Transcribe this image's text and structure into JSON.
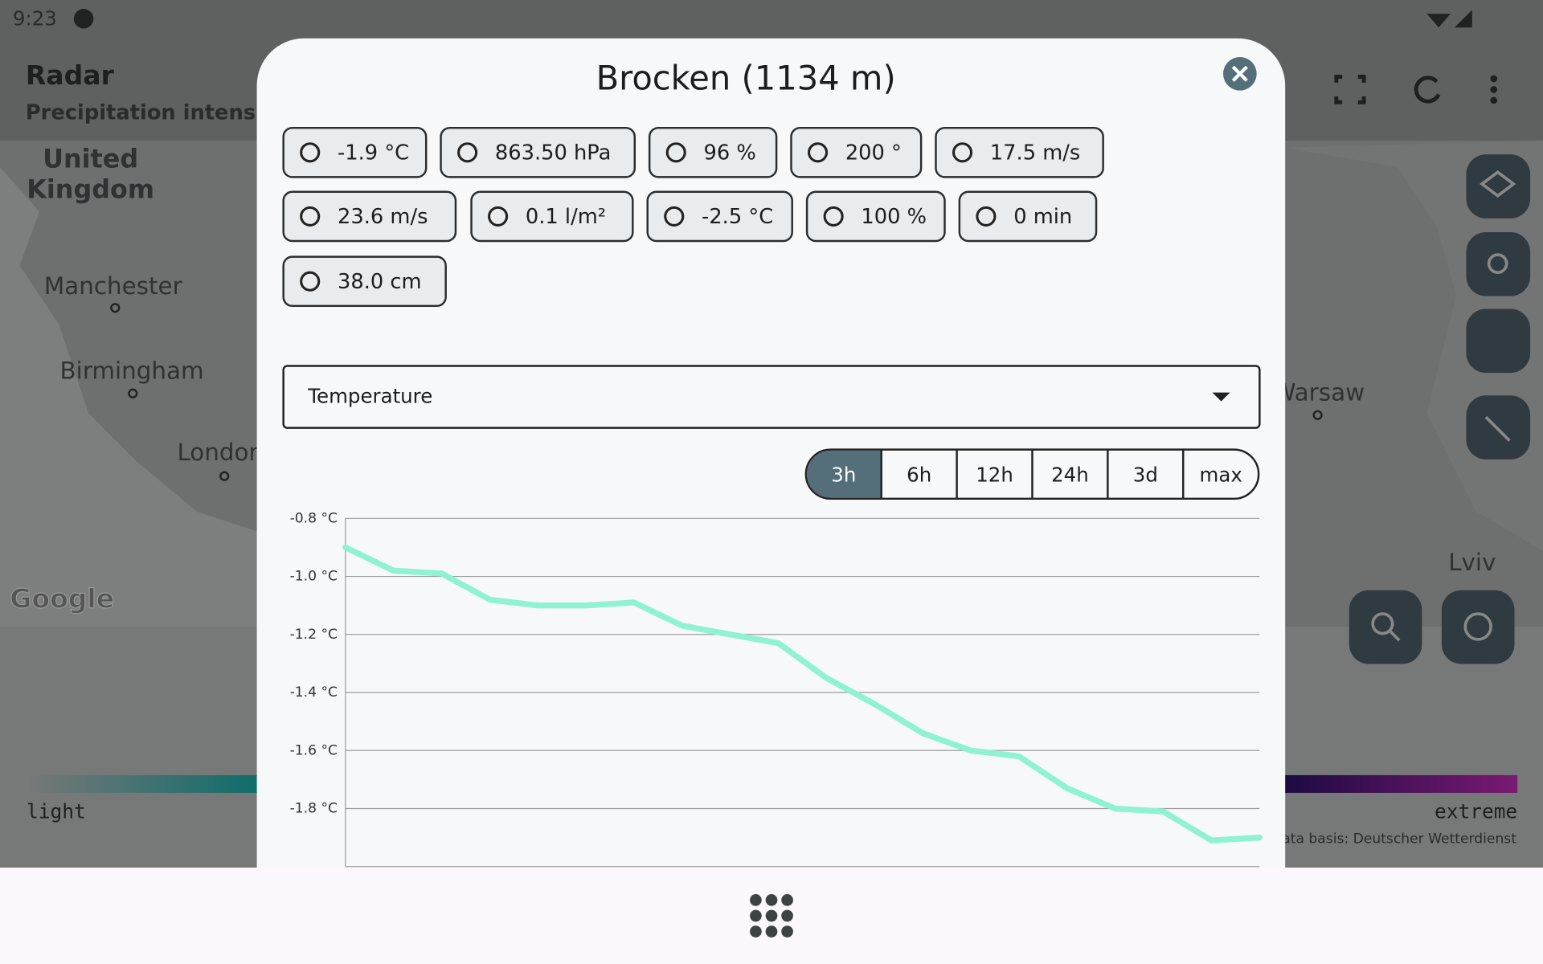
{
  "status_bar": {
    "time": "9:23"
  },
  "app_bar": {
    "title": "Radar",
    "subtitle": "Precipitation intensity"
  },
  "map": {
    "labels": [
      "United",
      "Kingdom",
      "Manchester",
      "Birmingham",
      "London",
      "Warsaw",
      "Lviv"
    ],
    "logo": "Google"
  },
  "legend": {
    "low": "light",
    "high": "extreme",
    "source": "Data basis: Deutscher Wetterdienst"
  },
  "dialog": {
    "title": "Brocken (1134 m)",
    "chips": [
      "-1.9 °C",
      "863.50 hPa",
      "96 %",
      "200 °",
      "17.5 m/s",
      "23.6 m/s",
      "0.1 l/m²",
      "-2.5 °C",
      "100 %",
      "0 min",
      "38.0 cm"
    ],
    "dropdown": "Temperature",
    "ranges": [
      "3h",
      "6h",
      "12h",
      "24h",
      "3d",
      "max"
    ]
  },
  "chart_data": {
    "type": "line",
    "color": "#8ff2d2",
    "grid": true,
    "categories": [
      null,
      null,
      null,
      null,
      null,
      null,
      null,
      null,
      null,
      null,
      null,
      null,
      null,
      null,
      null,
      null,
      null,
      null,
      null,
      null
    ],
    "values": [
      -0.9,
      -0.98,
      -0.99,
      -1.08,
      -1.1,
      -1.1,
      -1.09,
      -1.17,
      -1.2,
      -1.23,
      -1.35,
      -1.44,
      -1.54,
      -1.6,
      -1.62,
      -1.73,
      -1.8,
      -1.81,
      -1.91,
      -1.9
    ],
    "ylim": [
      -2.0,
      -0.8
    ],
    "yticks": [
      {
        "value": -0.8,
        "label": "-0.8 °C"
      },
      {
        "value": -1.0,
        "label": "-1.0 °C"
      },
      {
        "value": -1.2,
        "label": "-1.2 °C"
      },
      {
        "value": -1.4,
        "label": "-1.4 °C"
      },
      {
        "value": -1.6,
        "label": "-1.6 °C"
      },
      {
        "value": -1.8,
        "label": "-1.8 °C"
      }
    ]
  }
}
